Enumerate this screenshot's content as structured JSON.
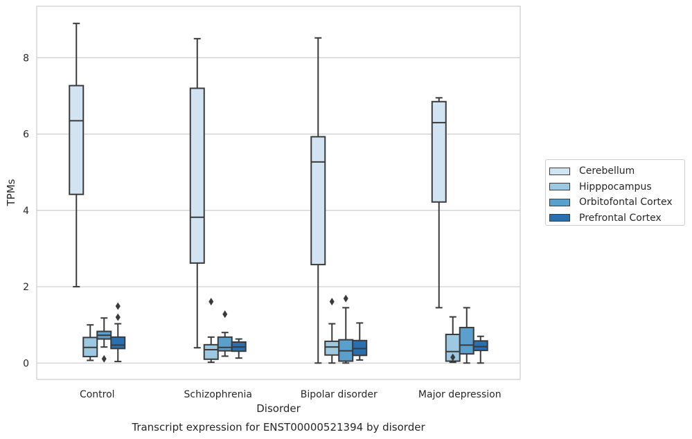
{
  "chart_data": {
    "type": "box",
    "title": "",
    "caption": "Transcript expression for ENST00000521394 by disorder",
    "xlabel": "Disorder",
    "ylabel": "TPMs",
    "ylim": [
      -0.43,
      9.35
    ],
    "yticks": [
      0,
      2,
      4,
      6,
      8
    ],
    "grid": "horizontal",
    "legend_position": "right",
    "categories": [
      "Control",
      "Schizophrenia",
      "Bipolar disorder",
      "Major depression"
    ],
    "series": [
      {
        "name": "Cerebellum",
        "color": "#d2e3f2",
        "boxes": [
          {
            "whislo": 2.0,
            "q1": 4.42,
            "med": 6.35,
            "q3": 7.27,
            "whishi": 8.9,
            "fliers": []
          },
          {
            "whislo": 0.4,
            "q1": 2.62,
            "med": 3.82,
            "q3": 7.2,
            "whishi": 8.5,
            "fliers": []
          },
          {
            "whislo": 0.0,
            "q1": 2.58,
            "med": 5.27,
            "q3": 5.93,
            "whishi": 8.52,
            "fliers": []
          },
          {
            "whislo": 1.45,
            "q1": 4.22,
            "med": 6.3,
            "q3": 6.85,
            "whishi": 6.95,
            "fliers": []
          }
        ]
      },
      {
        "name": "Hipppocampus",
        "color": "#9cc8e2",
        "boxes": [
          {
            "whislo": 0.07,
            "q1": 0.17,
            "med": 0.41,
            "q3": 0.67,
            "whishi": 1.0,
            "fliers": []
          },
          {
            "whislo": 0.02,
            "q1": 0.1,
            "med": 0.35,
            "q3": 0.48,
            "whishi": 0.68,
            "fliers": [
              1.61
            ]
          },
          {
            "whislo": 0.0,
            "q1": 0.21,
            "med": 0.42,
            "q3": 0.57,
            "whishi": 1.03,
            "fliers": [
              1.61
            ]
          },
          {
            "whislo": 0.02,
            "q1": 0.05,
            "med": 0.3,
            "q3": 0.75,
            "whishi": 1.21,
            "fliers": [
              0.15
            ]
          }
        ]
      },
      {
        "name": "Orbitofontal Cortex",
        "color": "#5b9fcc",
        "boxes": [
          {
            "whislo": 0.42,
            "q1": 0.63,
            "med": 0.73,
            "q3": 0.83,
            "whishi": 1.18,
            "fliers": [
              0.11
            ]
          },
          {
            "whislo": 0.18,
            "q1": 0.32,
            "med": 0.41,
            "q3": 0.68,
            "whishi": 0.8,
            "fliers": [
              1.28
            ]
          },
          {
            "whislo": 0.0,
            "q1": 0.05,
            "med": 0.32,
            "q3": 0.61,
            "whishi": 1.45,
            "fliers": [
              1.69
            ]
          },
          {
            "whislo": 0.0,
            "q1": 0.24,
            "med": 0.47,
            "q3": 0.93,
            "whishi": 1.45,
            "fliers": []
          }
        ]
      },
      {
        "name": "Prefrontal Cortex",
        "color": "#2a6fb0",
        "boxes": [
          {
            "whislo": 0.04,
            "q1": 0.38,
            "med": 0.47,
            "q3": 0.68,
            "whishi": 1.03,
            "fliers": [
              1.2,
              1.49
            ]
          },
          {
            "whislo": 0.13,
            "q1": 0.31,
            "med": 0.42,
            "q3": 0.55,
            "whishi": 0.63,
            "fliers": []
          },
          {
            "whislo": 0.08,
            "q1": 0.2,
            "med": 0.38,
            "q3": 0.59,
            "whishi": 1.05,
            "fliers": []
          },
          {
            "whislo": 0.0,
            "q1": 0.33,
            "med": 0.43,
            "q3": 0.58,
            "whishi": 0.7,
            "fliers": []
          }
        ]
      }
    ]
  }
}
